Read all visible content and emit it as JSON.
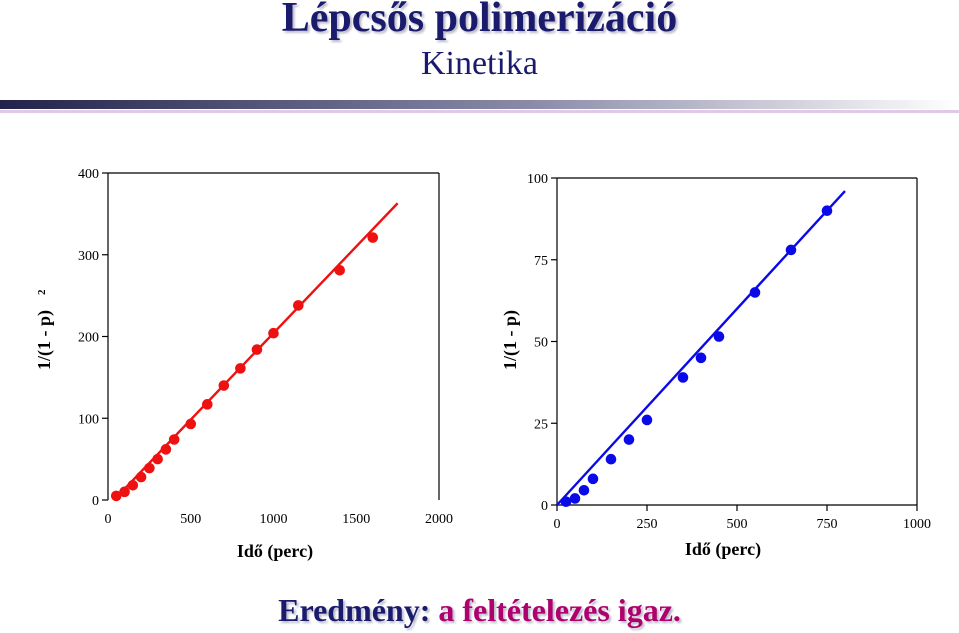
{
  "slide": {
    "title": "Lépcsős polimerizáció",
    "subtitle": "Kinetika",
    "result_prefix": "Eredmény:",
    "result_suffix": "a feltételezés igaz."
  },
  "colors": {
    "title": "#1b1b6e",
    "result_highlight": "#b0006e",
    "left_series": "#ee1111",
    "right_series": "#0a0ae8"
  },
  "chart_data": [
    {
      "type": "scatter",
      "ylabel": "1/(1 - p)",
      "ylabel_superscript": "2",
      "xlabel": "Idő (perc)",
      "xlim": [
        0,
        2000
      ],
      "ylim": [
        0,
        400
      ],
      "xticks": [
        0,
        500,
        1000,
        1500,
        2000
      ],
      "yticks": [
        0,
        100,
        200,
        300,
        400
      ],
      "color": "#ee1111",
      "series": [
        {
          "x": [
            50,
            100,
            150,
            200,
            250,
            300,
            350,
            400,
            500,
            600,
            700,
            800,
            900,
            1000,
            1150,
            1400,
            1600
          ],
          "y": [
            5,
            10,
            18,
            28,
            39,
            50,
            62,
            74,
            93,
            117,
            140,
            161,
            184,
            204,
            238,
            281,
            321
          ]
        }
      ],
      "fit_line": {
        "x": [
          50,
          1750
        ],
        "y": [
          3,
          363
        ]
      }
    },
    {
      "type": "scatter",
      "ylabel": "1/(1 - p)",
      "xlabel": "Idő (perc)",
      "xlim": [
        0,
        1000
      ],
      "ylim": [
        0,
        100
      ],
      "xticks": [
        0,
        250,
        500,
        750,
        1000
      ],
      "yticks": [
        0,
        25,
        50,
        75,
        100
      ],
      "color": "#0a0ae8",
      "series": [
        {
          "x": [
            25,
            50,
            75,
            100,
            150,
            200,
            250,
            350,
            400,
            450,
            550,
            650,
            750
          ],
          "y": [
            1,
            2,
            4.5,
            8,
            14,
            20,
            26,
            39,
            45,
            51.5,
            65,
            78,
            90
          ]
        }
      ],
      "fit_line": {
        "x": [
          0,
          800
        ],
        "y": [
          0,
          96
        ]
      }
    }
  ]
}
